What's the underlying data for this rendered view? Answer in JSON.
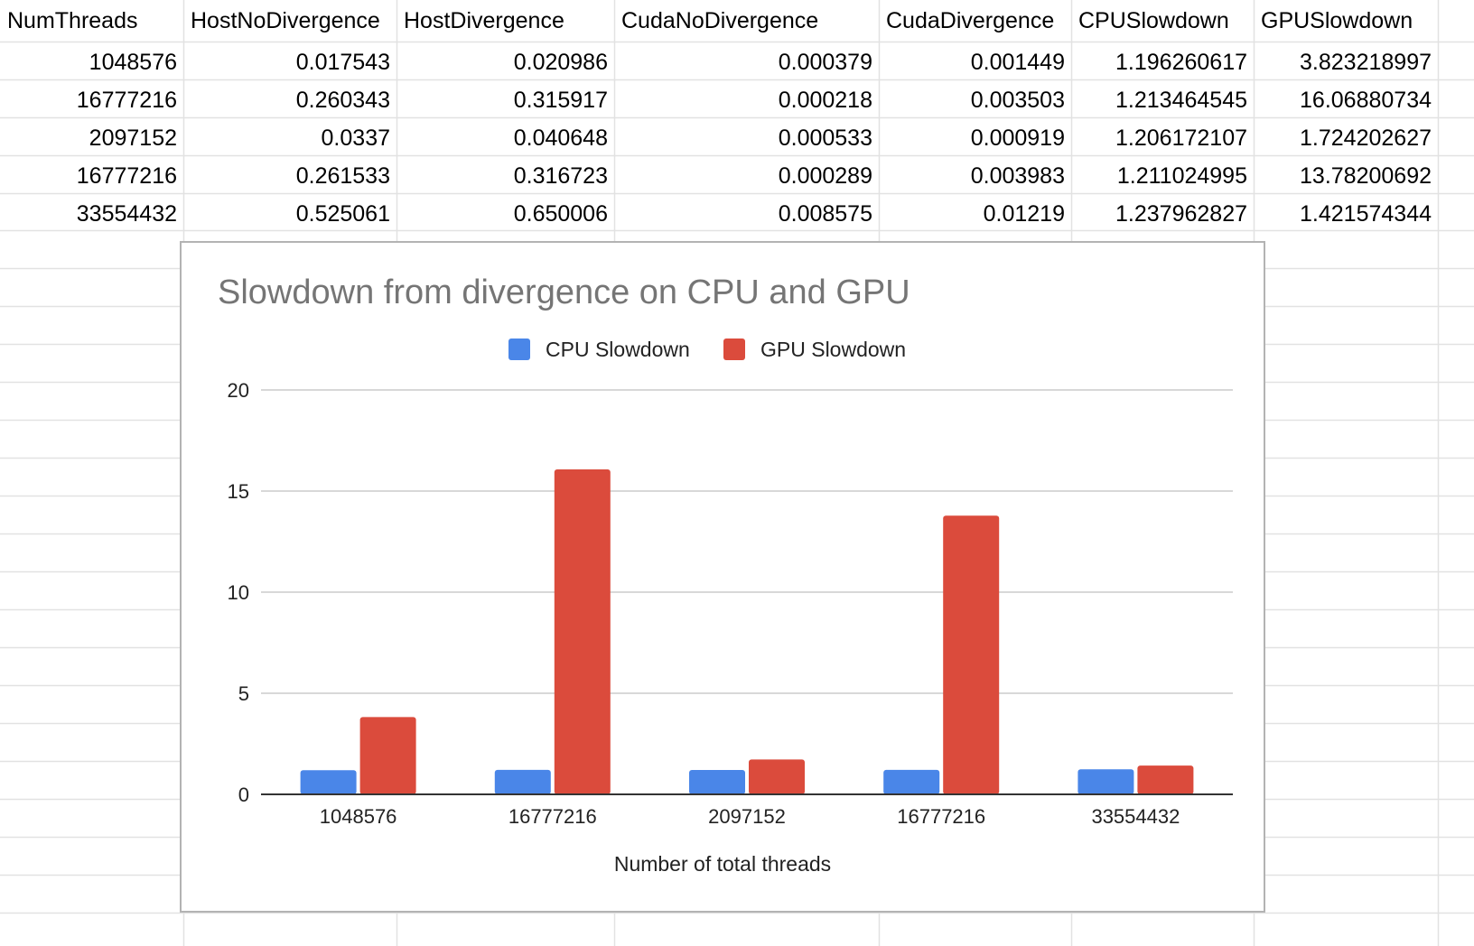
{
  "table": {
    "headers": [
      "NumThreads",
      "HostNoDivergence",
      "HostDivergence",
      "CudaNoDivergence",
      "CudaDivergence",
      "CPUSlowdown",
      "GPUSlowdown"
    ],
    "rows": [
      [
        "1048576",
        "0.017543",
        "0.020986",
        "0.000379",
        "0.001449",
        "1.196260617",
        "3.823218997"
      ],
      [
        "16777216",
        "0.260343",
        "0.315917",
        "0.000218",
        "0.003503",
        "1.213464545",
        "16.06880734"
      ],
      [
        "2097152",
        "0.0337",
        "0.040648",
        "0.000533",
        "0.000919",
        "1.206172107",
        "1.724202627"
      ],
      [
        "16777216",
        "0.261533",
        "0.316723",
        "0.000289",
        "0.003983",
        "1.211024995",
        "13.78200692"
      ],
      [
        "33554432",
        "0.525061",
        "0.650006",
        "0.008575",
        "0.01219",
        "1.237962827",
        "1.421574344"
      ]
    ]
  },
  "chart_data": {
    "type": "bar",
    "title": "Slowdown from divergence on CPU and GPU",
    "categories": [
      "1048576",
      "16777216",
      "2097152",
      "16777216",
      "33554432"
    ],
    "series": [
      {
        "name": "CPU Slowdown",
        "color": "#4a86e8",
        "values": [
          1.196260617,
          1.213464545,
          1.206172107,
          1.211024995,
          1.237962827
        ]
      },
      {
        "name": "GPU Slowdown",
        "color": "#db4b3c",
        "values": [
          3.823218997,
          16.06880734,
          1.724202627,
          13.78200692,
          1.421574344
        ]
      }
    ],
    "xlabel": "Number of total threads",
    "ylabel": "",
    "ylim": [
      0,
      20
    ],
    "yticks": [
      "0",
      "5",
      "10",
      "15",
      "20"
    ],
    "legend_position": "top",
    "grid": true
  }
}
